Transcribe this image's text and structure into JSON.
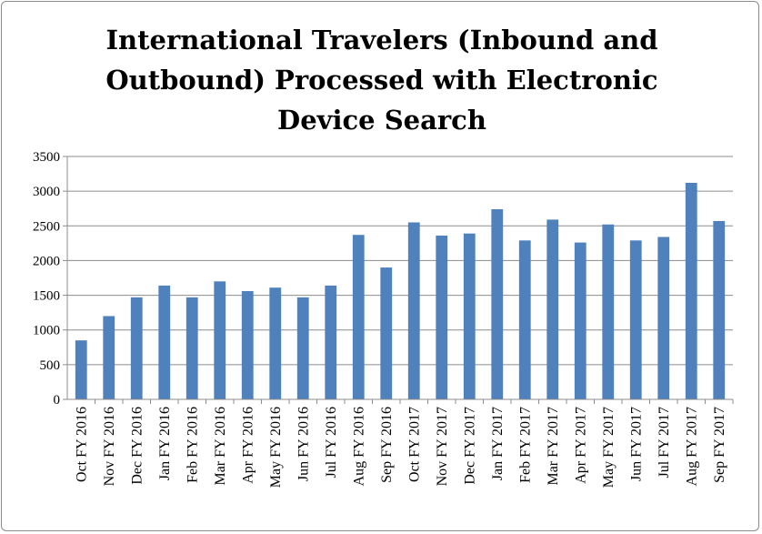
{
  "chart_data": {
    "type": "bar",
    "title": "International Travelers (Inbound and Outbound) Processed with Electronic Device Search",
    "xlabel": "",
    "ylabel": "",
    "ylim": [
      0,
      3500
    ],
    "yticks": [
      0,
      500,
      1000,
      1500,
      2000,
      2500,
      3000,
      3500
    ],
    "grid": true,
    "legend": "none",
    "bar_color": "#4f81bd",
    "categories": [
      "Oct FY 2016",
      "Nov FY 2016",
      "Dec FY 2016",
      "Jan FY 2016",
      "Feb FY 2016",
      "Mar FY 2016",
      "Apr FY 2016",
      "May FY 2016",
      "Jun FY 2016",
      "Jul FY 2016",
      "Aug FY 2016",
      "Sep FY 2016",
      "Oct FY 2017",
      "Nov FY 2017",
      "Dec FY 2017",
      "Jan FY 2017",
      "Feb FY 2017",
      "Mar FY 2017",
      "Apr FY 2017",
      "May FY 2017",
      "Jun FY 2017",
      "Jul FY 2017",
      "Aug FY 2017",
      "Sep FY 2017"
    ],
    "values": [
      850,
      1200,
      1470,
      1640,
      1470,
      1700,
      1560,
      1610,
      1470,
      1640,
      2370,
      1900,
      2550,
      2360,
      2390,
      2740,
      2290,
      2590,
      2260,
      2520,
      2290,
      2340,
      3120,
      2570
    ]
  }
}
